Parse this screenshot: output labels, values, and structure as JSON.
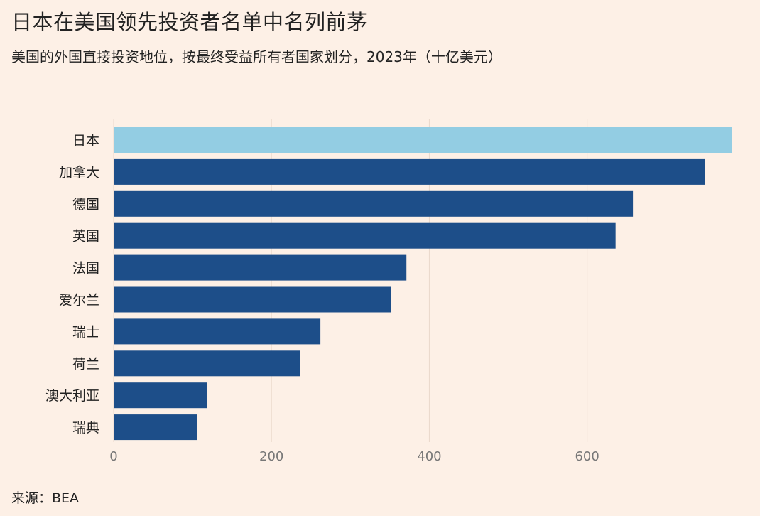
{
  "title": "日本在美国领先投资者名单中名列前茅",
  "subtitle": "美国的外国直接投资地位，按最终受益所有者国家划分，2023年（十亿美元）",
  "source": "来源：BEA",
  "colors": {
    "background": "#fdf0e6",
    "highlight_bar": "#93cde3",
    "bar": "#1d4e89",
    "grid": "#ead9cc"
  },
  "chart_data": {
    "type": "bar",
    "orientation": "horizontal",
    "categories": [
      "日本",
      "加拿大",
      "德国",
      "英国",
      "法国",
      "爱尔兰",
      "瑞士",
      "荷兰",
      "澳大利亚",
      "瑞典"
    ],
    "values": [
      783,
      749,
      658,
      636,
      371,
      351,
      262,
      236,
      118,
      106
    ],
    "highlight": "日本",
    "xlim": [
      0,
      783
    ],
    "x_ticks": [
      0,
      200,
      400,
      600
    ],
    "grid": true
  }
}
